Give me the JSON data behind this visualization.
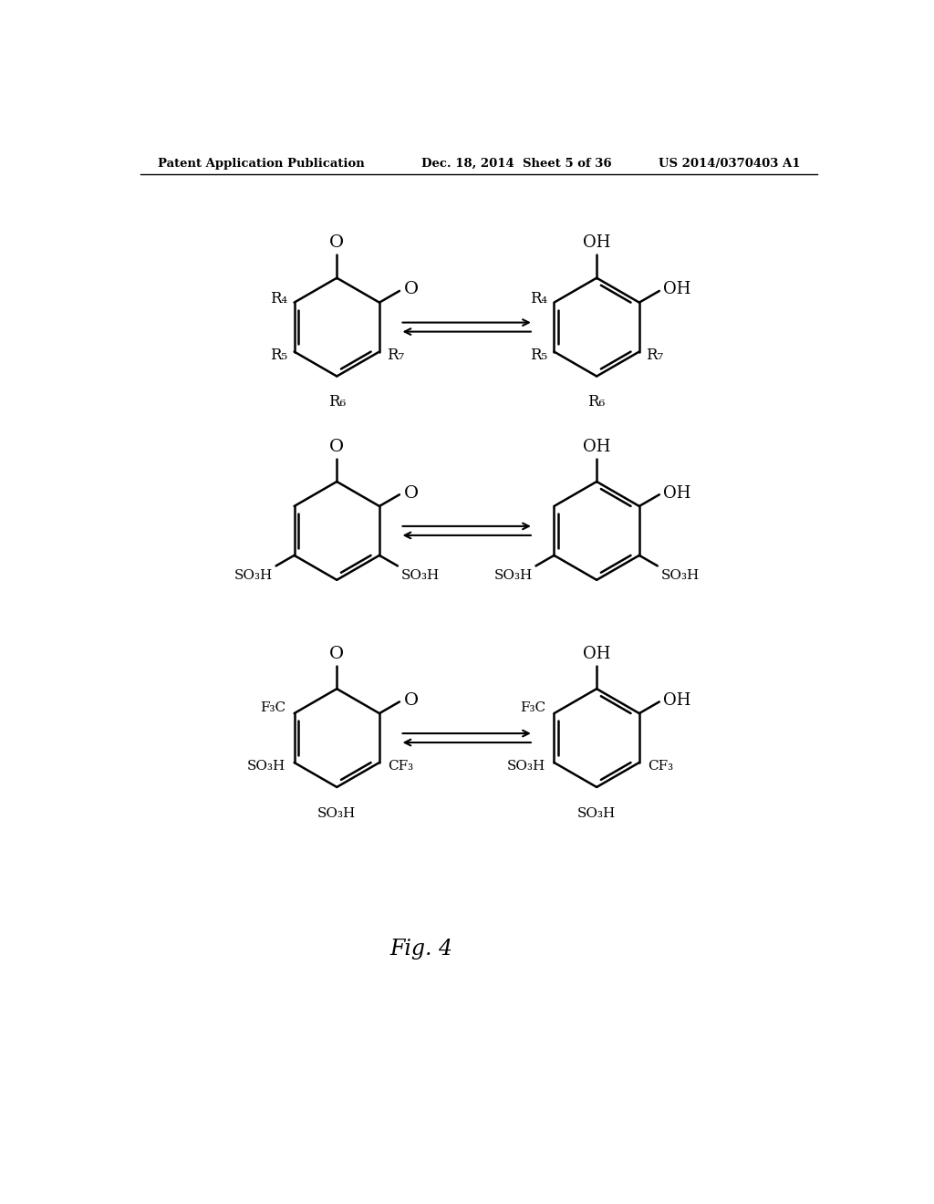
{
  "background_color": "#ffffff",
  "header_left": "Patent Application Publication",
  "header_mid": "Dec. 18, 2014  Sheet 5 of 36",
  "header_right": "US 2014/0370403 A1",
  "text_color": "#000000",
  "line_color": "#000000",
  "figure_label": "Fig. 4"
}
